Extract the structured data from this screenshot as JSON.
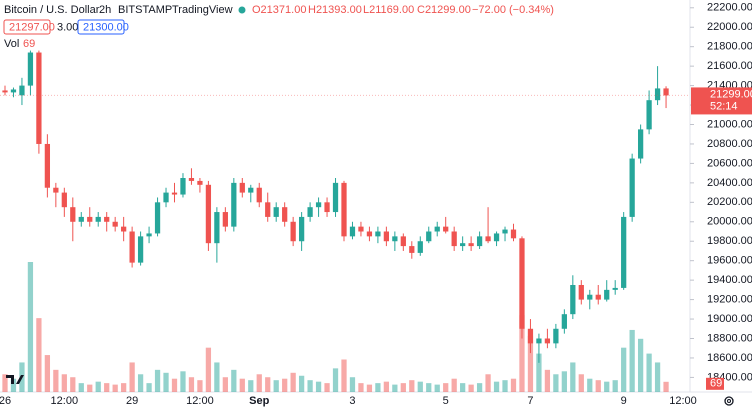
{
  "header": {
    "title": "Bitcoin / U.S. Dollar",
    "interval": "2h",
    "exchange": "BITSTAMP",
    "source": "TradingView",
    "open": "O21371.00",
    "high": "H21393.00",
    "low": "L21169.00",
    "close": "C21299.00",
    "change": "−72.00 (−0.34%)",
    "bid": "21297.00",
    "spread": "3.00",
    "ask": "21300.00",
    "vol_name": "Vol",
    "vol_value": "69"
  },
  "chart_data": {
    "type": "candlestick",
    "categories": [
      "26",
      null,
      null,
      null,
      null,
      null,
      null,
      "12:00",
      null,
      null,
      null,
      null,
      null,
      null,
      null,
      "29",
      null,
      null,
      null,
      null,
      null,
      null,
      null,
      "12:00",
      null,
      null,
      null,
      null,
      null,
      null,
      "Sep",
      null,
      null,
      null,
      null,
      null,
      null,
      null,
      null,
      null,
      null,
      "3",
      null,
      null,
      null,
      null,
      null,
      null,
      null,
      null,
      null,
      null,
      "5",
      null,
      null,
      null,
      null,
      null,
      null,
      null,
      null,
      null,
      "7",
      null,
      null,
      null,
      null,
      null,
      null,
      null,
      null,
      null,
      null,
      "9",
      null,
      null,
      null,
      null,
      null,
      null,
      "12:00"
    ],
    "open": [
      21350,
      21330,
      21300,
      21400,
      21740,
      20800,
      20350,
      20300,
      20150,
      20000,
      20050,
      20000,
      20050,
      20000,
      19950,
      19900,
      19580,
      19850,
      19880,
      20200,
      20300,
      20280,
      20450,
      20420,
      20380,
      19780,
      20100,
      19950,
      20400,
      20300,
      20350,
      20200,
      20050,
      20150,
      20000,
      19800,
      20050,
      20150,
      20200,
      20100,
      20400,
      19850,
      19950,
      19900,
      19850,
      19900,
      19800,
      19850,
      19750,
      19680,
      19800,
      19900,
      19950,
      19900,
      19750,
      19780,
      19750,
      19850,
      19800,
      19880,
      19920,
      19830,
      18900,
      18750,
      18800,
      18750,
      18900,
      19050,
      19350,
      19200,
      19250,
      19200,
      19300,
      19320,
      20050,
      20650,
      20950,
      21250,
      21371,
      null,
      null
    ],
    "high": [
      21400,
      21380,
      21480,
      21760,
      21760,
      20900,
      20400,
      20350,
      20250,
      20100,
      20150,
      20100,
      20100,
      20050,
      20050,
      19950,
      19900,
      19950,
      20250,
      20350,
      20400,
      20500,
      20550,
      20450,
      20420,
      20150,
      20150,
      20450,
      20450,
      20380,
      20400,
      20300,
      20200,
      20200,
      20050,
      20100,
      20200,
      20250,
      20250,
      20450,
      20420,
      20000,
      20000,
      19950,
      19950,
      19950,
      19900,
      19880,
      19800,
      19850,
      19950,
      20000,
      20050,
      19950,
      19850,
      19850,
      19900,
      20150,
      19900,
      19950,
      19980,
      19850,
      19000,
      18850,
      18900,
      18950,
      19100,
      19450,
      19400,
      19300,
      19350,
      19400,
      19400,
      20100,
      20700,
      21000,
      21350,
      21600,
      21393,
      null,
      null
    ],
    "low": [
      21300,
      21280,
      21200,
      21300,
      20700,
      20250,
      20150,
      20050,
      19800,
      19950,
      19950,
      19950,
      19900,
      19900,
      19800,
      19530,
      19550,
      19780,
      19850,
      20150,
      20200,
      20250,
      20380,
      20300,
      19700,
      19580,
      19900,
      19900,
      20250,
      20200,
      20150,
      20000,
      20000,
      19950,
      19750,
      19700,
      20000,
      20050,
      20050,
      20050,
      19800,
      19820,
      19850,
      19800,
      19780,
      19750,
      19700,
      19700,
      19620,
      19650,
      19780,
      19850,
      19880,
      19700,
      19700,
      19700,
      19720,
      19780,
      19750,
      19800,
      19800,
      18800,
      18650,
      18550,
      18700,
      18700,
      18850,
      19000,
      19150,
      19100,
      19150,
      19180,
      19250,
      19300,
      20000,
      20600,
      20900,
      21200,
      21169,
      null,
      null
    ],
    "close": [
      21330,
      21360,
      21400,
      21740,
      20800,
      20350,
      20300,
      20150,
      20000,
      20050,
      20000,
      20050,
      20000,
      19950,
      19900,
      19580,
      19850,
      19880,
      20200,
      20300,
      20280,
      20450,
      20420,
      20380,
      19780,
      20100,
      19950,
      20400,
      20300,
      20350,
      20200,
      20050,
      20150,
      20000,
      19800,
      20050,
      20150,
      20200,
      20100,
      20400,
      19850,
      19950,
      19900,
      19850,
      19900,
      19800,
      19850,
      19750,
      19680,
      19800,
      19900,
      19950,
      19900,
      19750,
      19780,
      19750,
      19850,
      19800,
      19880,
      19920,
      19830,
      18900,
      18750,
      18800,
      18750,
      18900,
      19050,
      19350,
      19200,
      19250,
      19200,
      19300,
      19320,
      20050,
      20650,
      20950,
      21250,
      21371,
      21299,
      null,
      null
    ],
    "volume": [
      120,
      90,
      200,
      880,
      500,
      250,
      150,
      120,
      100,
      60,
      50,
      70,
      60,
      50,
      60,
      200,
      120,
      60,
      150,
      130,
      90,
      140,
      100,
      80,
      300,
      200,
      100,
      150,
      90,
      80,
      120,
      100,
      80,
      90,
      130,
      110,
      80,
      70,
      60,
      160,
      220,
      100,
      60,
      50,
      60,
      70,
      50,
      60,
      80,
      70,
      60,
      50,
      60,
      90,
      60,
      50,
      60,
      120,
      70,
      80,
      90,
      520,
      380,
      260,
      150,
      120,
      140,
      200,
      120,
      90,
      80,
      70,
      80,
      300,
      420,
      360,
      260,
      200,
      69,
      null,
      null
    ],
    "up_color": "#26a69a",
    "down_color": "#ef5350",
    "ylim": [
      18250,
      22280
    ],
    "yticks": [
      {
        "value": 22200,
        "label": "22200.00"
      },
      {
        "value": 22000,
        "label": "22000.00"
      },
      {
        "value": 21800,
        "label": "21800.00"
      },
      {
        "value": 21600,
        "label": "21600.00"
      },
      {
        "value": 21400,
        "label": "21400.00"
      },
      {
        "value": 21200,
        "label": "21200.00"
      },
      {
        "value": 21000,
        "label": "21000.00"
      },
      {
        "value": 20800,
        "label": "20800.00"
      },
      {
        "value": 20600,
        "label": "20600.00"
      },
      {
        "value": 20400,
        "label": "20400.00"
      },
      {
        "value": 20200,
        "label": "20200.00"
      },
      {
        "value": 20000,
        "label": "20000.00"
      },
      {
        "value": 19800,
        "label": "19800.00"
      },
      {
        "value": 19600,
        "label": "19600.00"
      },
      {
        "value": 19400,
        "label": "19400.00"
      },
      {
        "value": 19200,
        "label": "19200.00"
      },
      {
        "value": 19000,
        "label": "19000.00"
      },
      {
        "value": 18800,
        "label": "18800.00"
      },
      {
        "value": 18600,
        "label": "18600.00"
      },
      {
        "value": 18400,
        "label": "18400.00"
      }
    ],
    "grid": false,
    "last_price": {
      "value": 21299,
      "label": "21299.00",
      "countdown": "52:14"
    },
    "last_volume_label": "69"
  }
}
